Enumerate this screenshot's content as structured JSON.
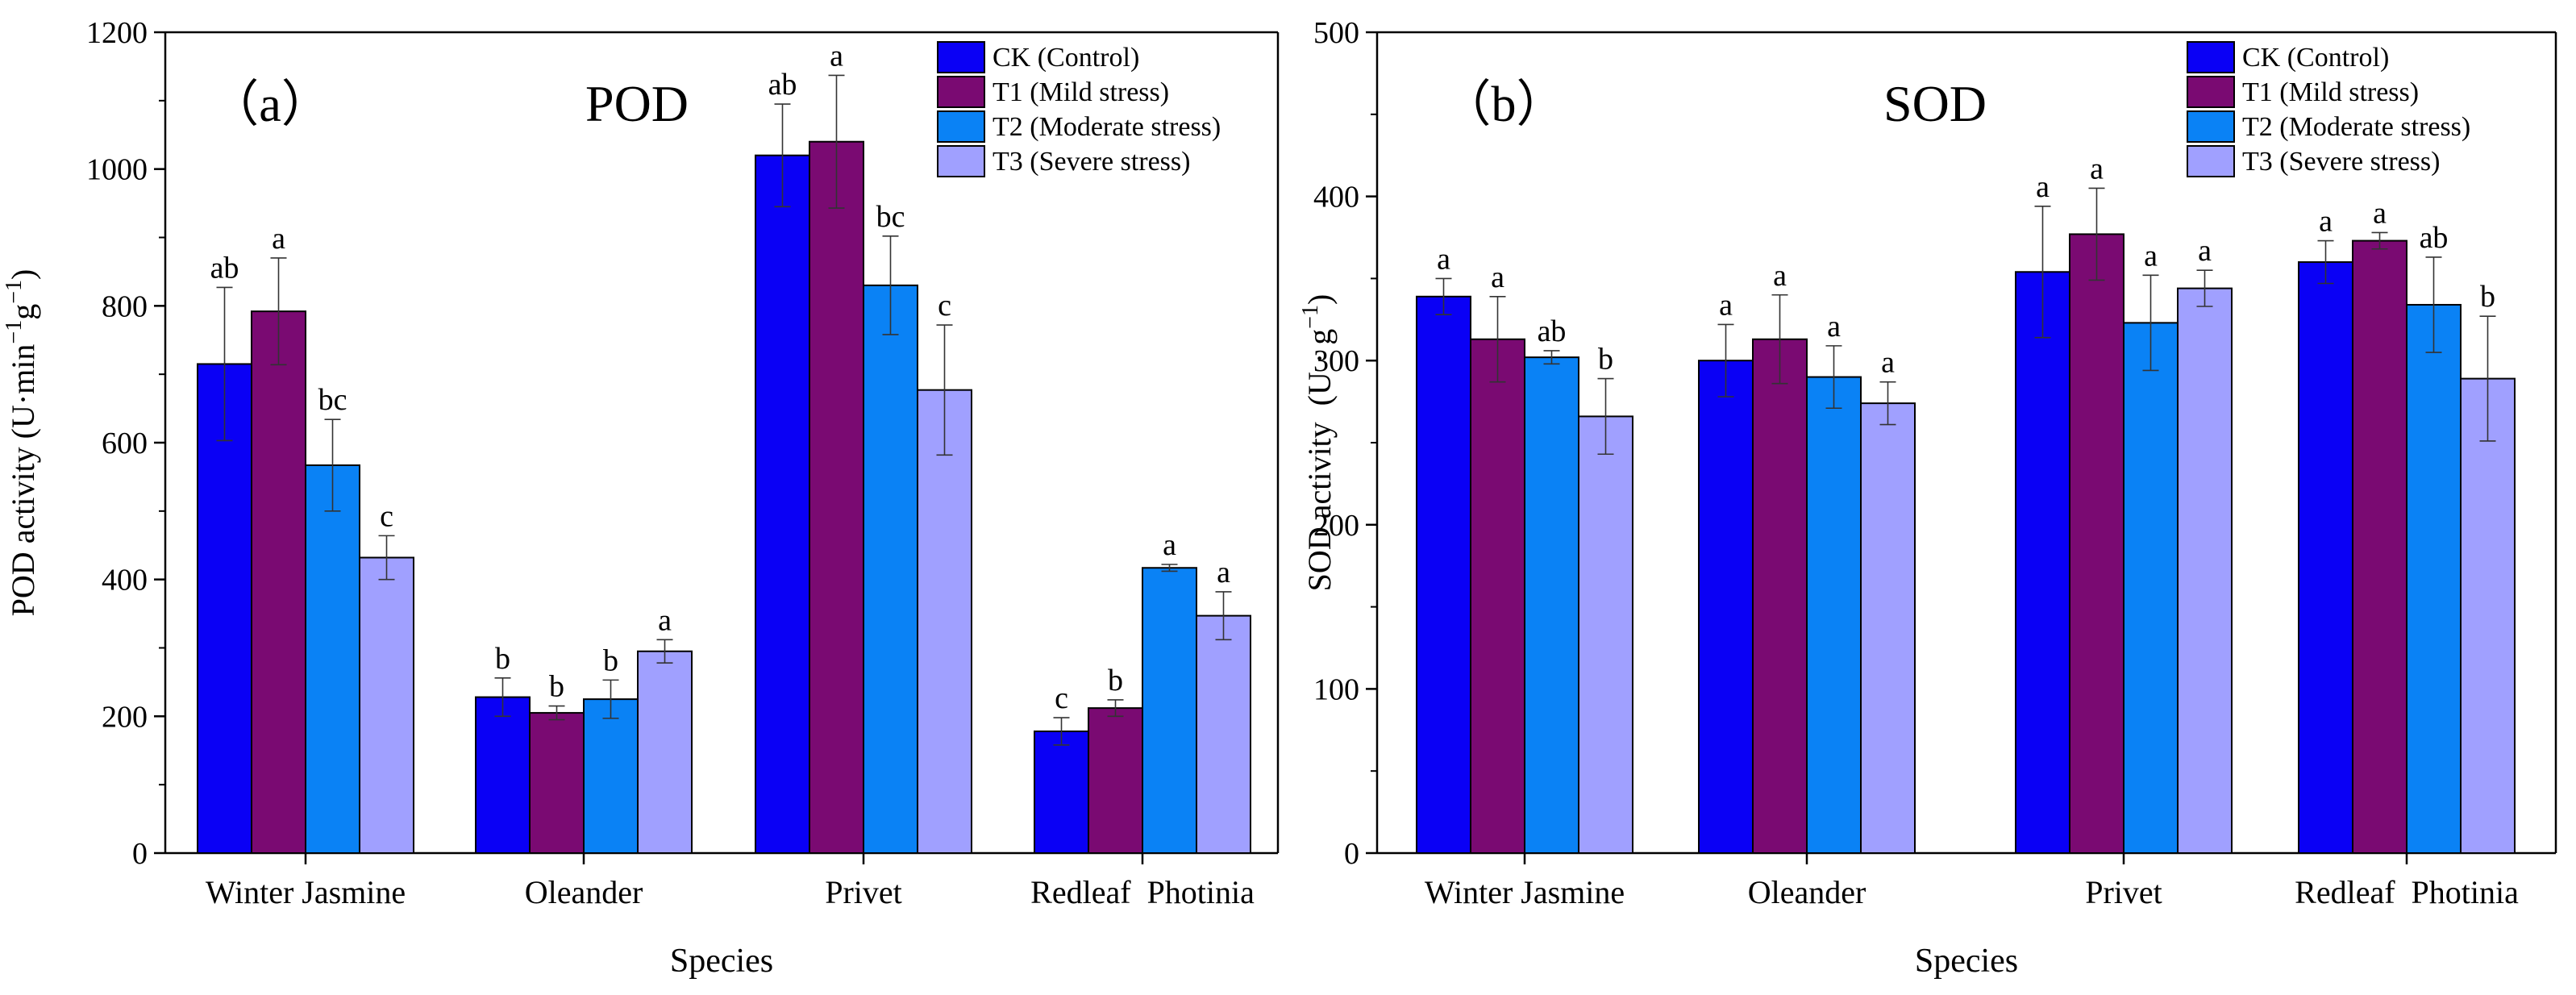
{
  "colors": [
    "#0a00f5",
    "#7a0a72",
    "#0a82f5",
    "#a0a0ff"
  ],
  "chart_data": [
    {
      "type": "bar",
      "panel_label": "（a）",
      "title": "POD",
      "xlabel": "Species",
      "ylabel_main": "POD activity (U·min",
      "ylabel_sup1": "−1",
      "ylabel_mid": "g",
      "ylabel_sup2": "−1",
      "ylabel_end": ")",
      "ylim": [
        0,
        1200
      ],
      "yticks": [
        "0",
        "200",
        "400",
        "600",
        "800",
        "1000",
        "1200"
      ],
      "categories": [
        "Winter Jasmine",
        "Oleander",
        "Privet",
        "Redleaf  Photinia"
      ],
      "legend": [
        "CK (Control)",
        "T1 (Mild stress)",
        "T2 (Moderate stress)",
        "T3 (Severe stress)"
      ],
      "legend_position": "top-right",
      "series": [
        {
          "name": "CK (Control)",
          "values": [
            715,
            228,
            1020,
            178
          ],
          "errors": [
            112,
            28,
            75,
            20
          ],
          "letters": [
            "ab",
            "b",
            "ab",
            "c"
          ]
        },
        {
          "name": "T1 (Mild stress)",
          "values": [
            792,
            205,
            1040,
            212
          ],
          "errors": [
            78,
            10,
            97,
            12
          ],
          "letters": [
            "a",
            "b",
            "a",
            "b"
          ]
        },
        {
          "name": "T2 (Moderate stress)",
          "values": [
            567,
            225,
            830,
            417
          ],
          "errors": [
            67,
            28,
            72,
            5
          ],
          "letters": [
            "bc",
            "b",
            "bc",
            "a"
          ]
        },
        {
          "name": "T3 (Severe stress)",
          "values": [
            432,
            295,
            677,
            347
          ],
          "errors": [
            32,
            17,
            95,
            35
          ],
          "letters": [
            "c",
            "a",
            "c",
            "a"
          ]
        }
      ]
    },
    {
      "type": "bar",
      "panel_label": "（b）",
      "title": "SOD",
      "xlabel": "Species",
      "ylabel_main": "SOD activity  (U · g",
      "ylabel_sup1": "−1",
      "ylabel_mid": "",
      "ylabel_sup2": "",
      "ylabel_end": ")",
      "ylim": [
        0,
        500
      ],
      "yticks": [
        "0",
        "100",
        "200",
        "300",
        "400",
        "500"
      ],
      "categories": [
        "Winter Jasmine",
        "Oleander",
        "Privet",
        "Redleaf  Photinia"
      ],
      "legend": [
        "CK (Control)",
        "T1 (Mild stress)",
        "T2 (Moderate stress)",
        "T3 (Severe stress)"
      ],
      "legend_position": "top-right",
      "series": [
        {
          "name": "CK (Control)",
          "values": [
            339,
            300,
            354,
            360
          ],
          "errors": [
            11,
            22,
            40,
            13
          ],
          "letters": [
            "a",
            "a",
            "a",
            "a"
          ]
        },
        {
          "name": "T1 (Mild stress)",
          "values": [
            313,
            313,
            377,
            373
          ],
          "errors": [
            26,
            27,
            28,
            5
          ],
          "letters": [
            "a",
            "a",
            "a",
            "a"
          ]
        },
        {
          "name": "T2 (Moderate stress)",
          "values": [
            302,
            290,
            323,
            334
          ],
          "errors": [
            4,
            19,
            29,
            29
          ],
          "letters": [
            "ab",
            "a",
            "a",
            "ab"
          ]
        },
        {
          "name": "T3 (Severe stress)",
          "values": [
            266,
            274,
            344,
            289
          ],
          "errors": [
            23,
            13,
            11,
            38
          ],
          "letters": [
            "b",
            "a",
            "a",
            "b"
          ]
        }
      ]
    }
  ]
}
